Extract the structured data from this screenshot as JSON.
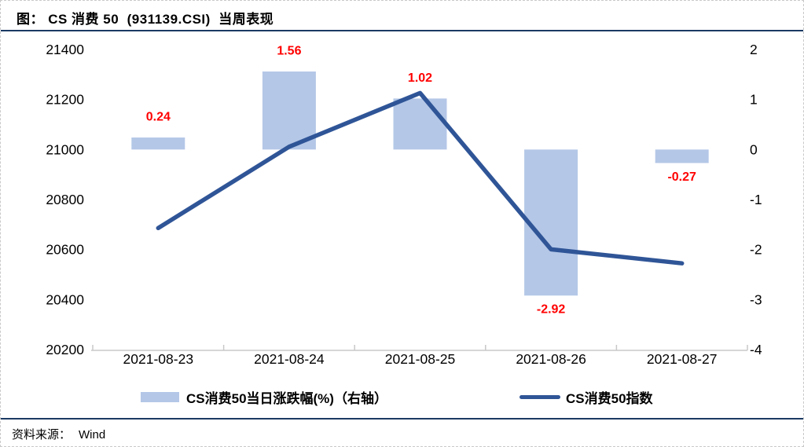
{
  "header": {
    "title": "图： CS 消费 50  (931139.CSI)  当周表现"
  },
  "footer": {
    "source_label": "资料来源：",
    "source_value": "Wind"
  },
  "chart_data": {
    "type": "combo-bar-line",
    "title": "CS 消费 50 (931139.CSI) 当周表现",
    "categories": [
      "2021-08-23",
      "2021-08-24",
      "2021-08-25",
      "2021-08-26",
      "2021-08-27"
    ],
    "series": [
      {
        "name": "CS消费50当日涨跌幅(%)（右轴）",
        "type": "bar",
        "axis": "right",
        "values": [
          0.24,
          1.56,
          1.02,
          -2.92,
          -0.27
        ],
        "labels": [
          "0.24",
          "1.56",
          "1.02",
          "-2.92",
          "-0.27"
        ],
        "color": "#b4c7e7"
      },
      {
        "name": "CS消费50指数",
        "type": "line",
        "axis": "left",
        "values": [
          20686,
          21011,
          21226,
          20601,
          20545
        ],
        "color": "#2f5597"
      }
    ],
    "left_axis": {
      "min": 20200,
      "max": 21400,
      "step": 200,
      "ticks": [
        "21400",
        "21200",
        "21000",
        "20800",
        "20600",
        "20400",
        "20200"
      ]
    },
    "right_axis": {
      "min": -4,
      "max": 2,
      "step": 1,
      "ticks": [
        "2",
        "1",
        "0",
        "-1",
        "-2",
        "-3",
        "-4"
      ]
    },
    "label_color": "#ff0000",
    "grid": false,
    "legend_position": "bottom"
  }
}
